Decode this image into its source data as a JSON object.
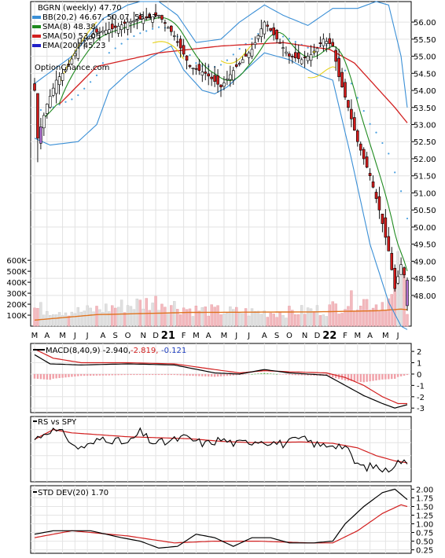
{
  "chart_data": [
    {
      "type": "candlestick",
      "title": "BGRN (weekly) 47.70",
      "watermark": "OptionChance.com",
      "legend": [
        {
          "label": "BB(20,2) 46.67, 50.07, 53.47",
          "color": "#3a8fd6"
        },
        {
          "label": "SMA(8) 48.38",
          "color": "#1f8a1f"
        },
        {
          "label": "SMA(50) 53.05",
          "color": "#d22020"
        },
        {
          "label": "EMA(200) 45.23",
          "color": "#2020c8"
        }
      ],
      "ylim": [
        47.1,
        56.6
      ],
      "y_ticks": [
        "56.00",
        "55.50",
        "55.00",
        "54.50",
        "54.00",
        "53.50",
        "53.00",
        "52.50",
        "52.00",
        "51.50",
        "51.00",
        "50.50",
        "50.00",
        "49.50",
        "49.00",
        "48.50",
        "48.00"
      ],
      "volume_ticks": [
        "600K",
        "500K",
        "400K",
        "300K",
        "200K",
        "100K"
      ],
      "volume_max": 680000,
      "x_labels": [
        "M",
        "A",
        "M",
        "J",
        "J",
        "A",
        "S",
        "O",
        "N",
        "D",
        "21",
        "F",
        "M",
        "A",
        "M",
        "J",
        "J",
        "A",
        "S",
        "O",
        "N",
        "D",
        "22",
        "F",
        "M",
        "A",
        "M",
        "J"
      ],
      "x_label_index": [
        0,
        4,
        9,
        13,
        17,
        22,
        26,
        30,
        35,
        39,
        43,
        48,
        52,
        56,
        61,
        65,
        69,
        74,
        78,
        82,
        87,
        91,
        95,
        100,
        104,
        108,
        113,
        117
      ],
      "close_anchors": [
        [
          0,
          54.0
        ],
        [
          1,
          52.6
        ],
        [
          4,
          53.6
        ],
        [
          7,
          54.3
        ],
        [
          10,
          54.6
        ],
        [
          15,
          55.4
        ],
        [
          20,
          55.7
        ],
        [
          25,
          55.8
        ],
        [
          30,
          56.0
        ],
        [
          35,
          56.1
        ],
        [
          40,
          56.2
        ],
        [
          45,
          55.6
        ],
        [
          50,
          54.7
        ],
        [
          55,
          54.5
        ],
        [
          60,
          54.1
        ],
        [
          65,
          54.7
        ],
        [
          70,
          55.2
        ],
        [
          74,
          56.0
        ],
        [
          78,
          55.5
        ],
        [
          82,
          55.0
        ],
        [
          86,
          54.9
        ],
        [
          90,
          55.1
        ],
        [
          93,
          55.5
        ],
        [
          96,
          55.3
        ],
        [
          98,
          54.4
        ],
        [
          101,
          53.5
        ],
        [
          104,
          52.5
        ],
        [
          108,
          51.5
        ],
        [
          111,
          50.5
        ],
        [
          114,
          49.3
        ],
        [
          116,
          48.2
        ],
        [
          118,
          48.9
        ],
        [
          119,
          48.6
        ],
        [
          120,
          47.7
        ]
      ],
      "sma50_anchors": [
        [
          8,
          53.6
        ],
        [
          20,
          54.7
        ],
        [
          40,
          55.1
        ],
        [
          60,
          55.3
        ],
        [
          80,
          55.4
        ],
        [
          95,
          55.2
        ],
        [
          103,
          54.8
        ],
        [
          110,
          54.1
        ],
        [
          116,
          53.5
        ],
        [
          120,
          53.05
        ]
      ],
      "bb_upper_anchors": [
        [
          0,
          54.2
        ],
        [
          12,
          55.0
        ],
        [
          22,
          56.1
        ],
        [
          30,
          56.5
        ],
        [
          34,
          56.6
        ],
        [
          40,
          56.6
        ],
        [
          46,
          56.2
        ],
        [
          52,
          55.4
        ],
        [
          60,
          55.5
        ],
        [
          66,
          56.0
        ],
        [
          74,
          56.5
        ],
        [
          80,
          56.2
        ],
        [
          88,
          55.9
        ],
        [
          96,
          56.4
        ],
        [
          104,
          56.4
        ],
        [
          110,
          56.6
        ],
        [
          114,
          56.5
        ],
        [
          118,
          55.0
        ],
        [
          120,
          53.5
        ]
      ],
      "bb_lower_anchors": [
        [
          0,
          52.6
        ],
        [
          5,
          52.4
        ],
        [
          14,
          52.5
        ],
        [
          20,
          53.0
        ],
        [
          24,
          54.0
        ],
        [
          30,
          54.5
        ],
        [
          38,
          55.0
        ],
        [
          44,
          55.3
        ],
        [
          48,
          54.6
        ],
        [
          54,
          54.0
        ],
        [
          58,
          53.9
        ],
        [
          62,
          54.1
        ],
        [
          68,
          54.6
        ],
        [
          74,
          55.1
        ],
        [
          82,
          54.9
        ],
        [
          90,
          54.5
        ],
        [
          96,
          54.3
        ],
        [
          102,
          52.0
        ],
        [
          108,
          49.5
        ],
        [
          114,
          47.8
        ],
        [
          118,
          47.1
        ],
        [
          120,
          47.0
        ]
      ],
      "volume_anchors": [
        [
          0,
          170000
        ],
        [
          15,
          140000
        ],
        [
          40,
          240000
        ],
        [
          50,
          160000
        ],
        [
          62,
          140000
        ],
        [
          78,
          130000
        ],
        [
          94,
          160000
        ],
        [
          104,
          260000
        ],
        [
          110,
          210000
        ],
        [
          115,
          260000
        ],
        [
          118,
          680000
        ],
        [
          120,
          100000
        ]
      ],
      "volume_ma_anchors": [
        [
          0,
          55000
        ],
        [
          20,
          105000
        ],
        [
          50,
          125000
        ],
        [
          90,
          130000
        ],
        [
          110,
          140000
        ],
        [
          118,
          155000
        ],
        [
          120,
          150000
        ]
      ]
    },
    {
      "type": "line",
      "title": "MACD(8,40,9) -2.940,",
      "values_text": [
        {
          "text": "-2.819,",
          "color": "#d22020"
        },
        {
          "text": "-0.121",
          "color": "#2040c0"
        }
      ],
      "ylim": [
        -3.4,
        2.7
      ],
      "y_ticks": [
        "2",
        "1",
        "0",
        "-1",
        "-2",
        "-3"
      ],
      "y_tick_values": [
        2,
        1,
        0,
        -1,
        -2,
        -3
      ],
      "macd_anchors": [
        [
          0,
          1.7
        ],
        [
          5,
          0.9
        ],
        [
          15,
          0.8
        ],
        [
          30,
          0.9
        ],
        [
          45,
          0.8
        ],
        [
          58,
          0.1
        ],
        [
          66,
          0.0
        ],
        [
          74,
          0.4
        ],
        [
          82,
          0.1
        ],
        [
          94,
          -0.1
        ],
        [
          100,
          -1.0
        ],
        [
          106,
          -1.9
        ],
        [
          112,
          -2.6
        ],
        [
          116,
          -3.0
        ],
        [
          120,
          -2.7
        ]
      ],
      "signal_anchors": [
        [
          0,
          2.2
        ],
        [
          6,
          1.4
        ],
        [
          15,
          1.0
        ],
        [
          30,
          1.0
        ],
        [
          45,
          0.9
        ],
        [
          58,
          0.4
        ],
        [
          66,
          0.1
        ],
        [
          74,
          0.3
        ],
        [
          82,
          0.2
        ],
        [
          94,
          0.1
        ],
        [
          100,
          -0.3
        ],
        [
          106,
          -1.0
        ],
        [
          112,
          -2.0
        ],
        [
          117,
          -2.6
        ],
        [
          120,
          -2.6
        ]
      ]
    },
    {
      "type": "line",
      "title": "RS vs SPY",
      "ylim": [
        0,
        10
      ],
      "rs_anchors": [
        [
          0,
          6.5
        ],
        [
          5,
          8.0
        ],
        [
          10,
          7.2
        ],
        [
          13,
          5.2
        ],
        [
          18,
          5.6
        ],
        [
          22,
          6.8
        ],
        [
          30,
          5.8
        ],
        [
          34,
          7.6
        ],
        [
          38,
          6.0
        ],
        [
          42,
          6.0
        ],
        [
          48,
          6.8
        ],
        [
          55,
          5.8
        ],
        [
          60,
          6.5
        ],
        [
          65,
          5.8
        ],
        [
          72,
          6.4
        ],
        [
          80,
          5.8
        ],
        [
          86,
          6.6
        ],
        [
          92,
          5.5
        ],
        [
          96,
          5.8
        ],
        [
          100,
          5.4
        ],
        [
          103,
          3.0
        ],
        [
          106,
          2.2
        ],
        [
          110,
          2.4
        ],
        [
          113,
          1.6
        ],
        [
          116,
          2.8
        ],
        [
          118,
          3.2
        ],
        [
          120,
          2.6
        ]
      ],
      "rs_ma_anchors": [
        [
          0,
          6.5
        ],
        [
          6,
          8.0
        ],
        [
          12,
          7.5
        ],
        [
          30,
          6.9
        ],
        [
          50,
          6.6
        ],
        [
          60,
          6.2
        ],
        [
          70,
          6.0
        ],
        [
          86,
          6.1
        ],
        [
          96,
          5.9
        ],
        [
          104,
          5.2
        ],
        [
          110,
          4.0
        ],
        [
          116,
          3.2
        ],
        [
          120,
          2.9
        ]
      ]
    },
    {
      "type": "line",
      "title": "STD DEV(20) 1.70",
      "ylim": [
        0.15,
        2.1
      ],
      "y_ticks": [
        "2.00",
        "1.75",
        "1.50",
        "1.25",
        "1.00",
        "0.75",
        "0.50",
        "0.25"
      ],
      "y_tick_values": [
        2.0,
        1.75,
        1.5,
        1.25,
        1.0,
        0.75,
        0.5,
        0.25
      ],
      "std_anchors": [
        [
          0,
          0.7
        ],
        [
          6,
          0.8
        ],
        [
          18,
          0.8
        ],
        [
          28,
          0.6
        ],
        [
          34,
          0.5
        ],
        [
          40,
          0.3
        ],
        [
          46,
          0.35
        ],
        [
          52,
          0.7
        ],
        [
          58,
          0.6
        ],
        [
          64,
          0.35
        ],
        [
          70,
          0.6
        ],
        [
          76,
          0.6
        ],
        [
          82,
          0.45
        ],
        [
          90,
          0.45
        ],
        [
          96,
          0.5
        ],
        [
          100,
          1.0
        ],
        [
          106,
          1.5
        ],
        [
          112,
          1.9
        ],
        [
          116,
          2.0
        ],
        [
          120,
          1.7
        ]
      ],
      "std_ma_anchors": [
        [
          0,
          0.6
        ],
        [
          12,
          0.8
        ],
        [
          30,
          0.65
        ],
        [
          45,
          0.45
        ],
        [
          58,
          0.5
        ],
        [
          72,
          0.5
        ],
        [
          88,
          0.45
        ],
        [
          96,
          0.45
        ],
        [
          104,
          0.8
        ],
        [
          112,
          1.3
        ],
        [
          118,
          1.55
        ],
        [
          120,
          1.5
        ]
      ]
    }
  ]
}
